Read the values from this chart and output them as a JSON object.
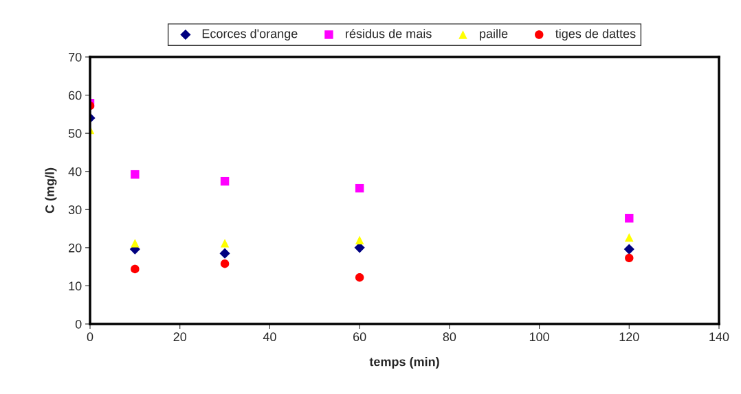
{
  "chart_data": {
    "type": "scatter",
    "xlabel": "temps (min)",
    "ylabel": "C (mg/l)",
    "x": [
      0,
      10,
      30,
      60,
      120
    ],
    "series": [
      {
        "name": "Ecorces d'orange",
        "color": "#000080",
        "marker": "diamond",
        "values": [
          54.0,
          19.6,
          18.5,
          20.0,
          19.6
        ]
      },
      {
        "name": "résidus de mais",
        "color": "#ff00ff",
        "marker": "square",
        "values": [
          57.9,
          39.2,
          37.4,
          35.6,
          27.7
        ]
      },
      {
        "name": "paille",
        "color": "#ffff00",
        "marker": "triangle",
        "values": [
          50.9,
          21.2,
          21.2,
          22.0,
          22.7
        ]
      },
      {
        "name": "tiges de dattes",
        "color": "#ff0000",
        "marker": "circle",
        "values": [
          57.2,
          14.4,
          15.8,
          12.2,
          17.3
        ]
      }
    ],
    "xlim": [
      0,
      140
    ],
    "xticks": [
      0,
      20,
      40,
      60,
      80,
      100,
      120,
      140
    ],
    "ylim": [
      0,
      70
    ],
    "yticks": [
      0,
      10,
      20,
      30,
      40,
      50,
      60,
      70
    ],
    "grid": false,
    "legend": "top"
  }
}
